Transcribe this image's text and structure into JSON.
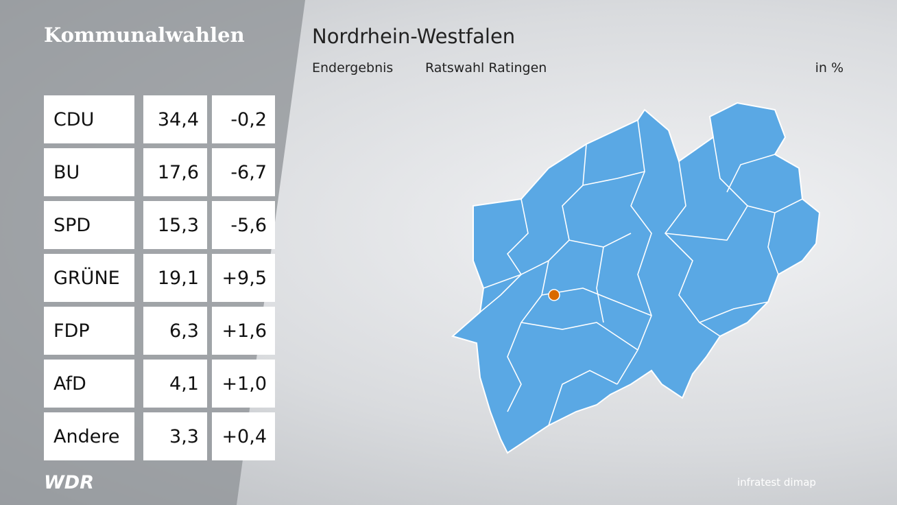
{
  "header": {
    "section": "Kommunalwahlen",
    "title": "Nordrhein-Westfalen",
    "subtitle": "Endergebnis",
    "election": "Ratswahl Ratingen",
    "unit": "in %"
  },
  "table": {
    "rows": [
      [
        "CDU",
        "34,4",
        "-0,2"
      ],
      [
        "BU",
        "17,6",
        "-6,7"
      ],
      [
        "SPD",
        "15,3",
        "-5,6"
      ],
      [
        "GRÜNE",
        "19,1",
        "+9,5"
      ],
      [
        "FDP",
        "6,3",
        "+1,6"
      ],
      [
        "AfD",
        "4,1",
        "+1,0"
      ],
      [
        "Andere",
        "3,3",
        "+0,4"
      ]
    ]
  },
  "footer": {
    "broadcaster": "WDR",
    "source": "infratest dimap"
  }
}
